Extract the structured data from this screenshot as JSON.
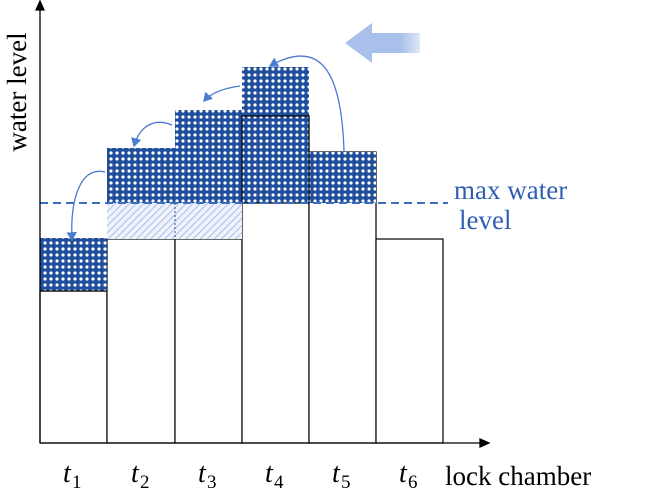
{
  "axes": {
    "y_label": "water level",
    "x_label": "lock chamber"
  },
  "annotation": {
    "line1": "max water",
    "line2": "level"
  },
  "chambers": [
    {
      "label": "t",
      "subscript": "1"
    },
    {
      "label": "t",
      "subscript": "2"
    },
    {
      "label": "t",
      "subscript": "3"
    },
    {
      "label": "t",
      "subscript": "4"
    },
    {
      "label": "t",
      "subscript": "5"
    },
    {
      "label": "t",
      "subscript": "6"
    }
  ]
}
